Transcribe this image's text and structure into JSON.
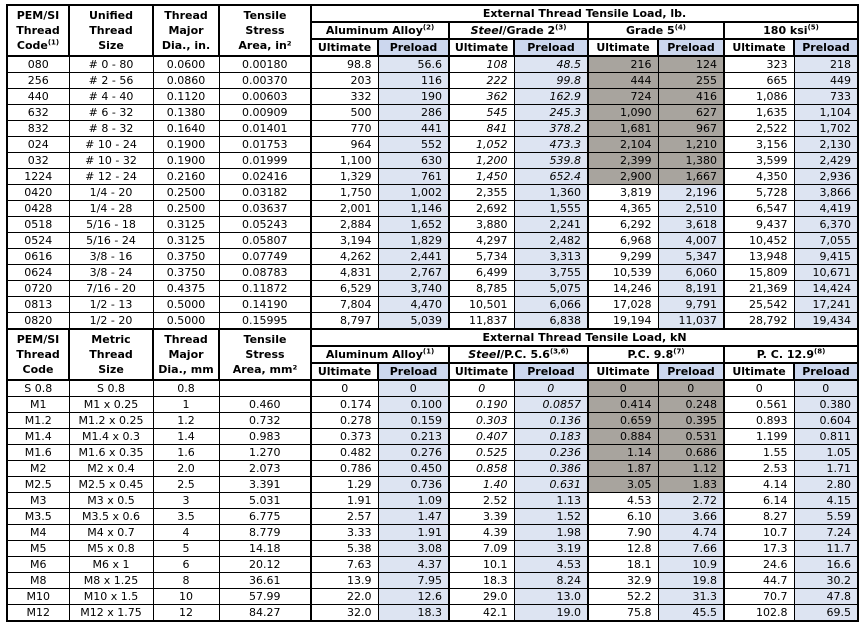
{
  "colors": {
    "preload_body_bg": "#dde4f2",
    "preload_header_bg": "#ccd7ee",
    "shaded_bg": "#a8a49e",
    "border": "#000000",
    "text": "#000000"
  },
  "subcols": [
    "Ultimate",
    "Preload"
  ],
  "sections": [
    {
      "left_headers": [
        {
          "lines": [
            "PEM/SI",
            "Thread",
            "Code"
          ],
          "sup": "(1)"
        },
        {
          "lines": [
            "Unified",
            "Thread",
            "Size"
          ]
        },
        {
          "lines": [
            "Thread",
            "Major",
            "Dia., in."
          ]
        },
        {
          "lines": [
            "Tensile",
            "Stress",
            "Area, in²"
          ]
        }
      ],
      "load_title": "External Thread Tensile Load, lb.",
      "groups": [
        {
          "italic": "",
          "plain": "Aluminum Alloy",
          "sup": "(2)"
        },
        {
          "italic": "Steel",
          "plain": "/Grade 2",
          "sup": "(3)"
        },
        {
          "italic": "",
          "plain": "Grade 5",
          "sup": "(4)"
        },
        {
          "italic": "",
          "plain": "180 ksi",
          "sup": "(5)"
        }
      ],
      "rows": [
        {
          "code": "080",
          "size": "# 0 - 80",
          "dia": "0.0600",
          "area": "0.00180",
          "loads": [
            "98.8",
            "56.6",
            "108",
            "48.5",
            "216",
            "124",
            "323",
            "218"
          ],
          "shaded": true,
          "italic": true
        },
        {
          "code": "256",
          "size": "# 2 - 56",
          "dia": "0.0860",
          "area": "0.00370",
          "loads": [
            "203",
            "116",
            "222",
            "99.8",
            "444",
            "255",
            "665",
            "449"
          ],
          "shaded": true,
          "italic": true
        },
        {
          "code": "440",
          "size": "# 4 - 40",
          "dia": "0.1120",
          "area": "0.00603",
          "loads": [
            "332",
            "190",
            "362",
            "162.9",
            "724",
            "416",
            "1,086",
            "733"
          ],
          "shaded": true,
          "italic": true
        },
        {
          "code": "632",
          "size": "# 6 - 32",
          "dia": "0.1380",
          "area": "0.00909",
          "loads": [
            "500",
            "286",
            "545",
            "245.3",
            "1,090",
            "627",
            "1,635",
            "1,104"
          ],
          "shaded": true,
          "italic": true
        },
        {
          "code": "832",
          "size": "# 8 - 32",
          "dia": "0.1640",
          "area": "0.01401",
          "loads": [
            "770",
            "441",
            "841",
            "378.2",
            "1,681",
            "967",
            "2,522",
            "1,702"
          ],
          "shaded": true,
          "italic": true
        },
        {
          "code": "024",
          "size": "# 10 - 24",
          "dia": "0.1900",
          "area": "0.01753",
          "loads": [
            "964",
            "552",
            "1,052",
            "473.3",
            "2,104",
            "1,210",
            "3,156",
            "2,130"
          ],
          "shaded": true,
          "italic": true
        },
        {
          "code": "032",
          "size": "# 10 - 32",
          "dia": "0.1900",
          "area": "0.01999",
          "loads": [
            "1,100",
            "630",
            "1,200",
            "539.8",
            "2,399",
            "1,380",
            "3,599",
            "2,429"
          ],
          "shaded": true,
          "italic": true
        },
        {
          "code": "1224",
          "size": "# 12 - 24",
          "dia": "0.2160",
          "area": "0.02416",
          "loads": [
            "1,329",
            "761",
            "1,450",
            "652.4",
            "2,900",
            "1,667",
            "4,350",
            "2,936"
          ],
          "shaded": true,
          "italic": true
        },
        {
          "code": "0420",
          "size": "1/4 - 20",
          "dia": "0.2500",
          "area": "0.03182",
          "loads": [
            "1,750",
            "1,002",
            "2,355",
            "1,360",
            "3,819",
            "2,196",
            "5,728",
            "3,866"
          ],
          "shaded": false,
          "italic": false
        },
        {
          "code": "0428",
          "size": "1/4 - 28",
          "dia": "0.2500",
          "area": "0.03637",
          "loads": [
            "2,001",
            "1,146",
            "2,692",
            "1,555",
            "4,365",
            "2,510",
            "6,547",
            "4,419"
          ],
          "shaded": false,
          "italic": false
        },
        {
          "code": "0518",
          "size": "5/16 - 18",
          "dia": "0.3125",
          "area": "0.05243",
          "loads": [
            "2,884",
            "1,652",
            "3,880",
            "2,241",
            "6,292",
            "3,618",
            "9,437",
            "6,370"
          ],
          "shaded": false,
          "italic": false
        },
        {
          "code": "0524",
          "size": "5/16 - 24",
          "dia": "0.3125",
          "area": "0.05807",
          "loads": [
            "3,194",
            "1,829",
            "4,297",
            "2,482",
            "6,968",
            "4,007",
            "10,452",
            "7,055"
          ],
          "shaded": false,
          "italic": false
        },
        {
          "code": "0616",
          "size": "3/8 - 16",
          "dia": "0.3750",
          "area": "0.07749",
          "loads": [
            "4,262",
            "2,441",
            "5,734",
            "3,313",
            "9,299",
            "5,347",
            "13,948",
            "9,415"
          ],
          "shaded": false,
          "italic": false
        },
        {
          "code": "0624",
          "size": "3/8 - 24",
          "dia": "0.3750",
          "area": "0.08783",
          "loads": [
            "4,831",
            "2,767",
            "6,499",
            "3,755",
            "10,539",
            "6,060",
            "15,809",
            "10,671"
          ],
          "shaded": false,
          "italic": false
        },
        {
          "code": "0720",
          "size": "7/16 - 20",
          "dia": "0.4375",
          "area": "0.11872",
          "loads": [
            "6,529",
            "3,740",
            "8,785",
            "5,075",
            "14,246",
            "8,191",
            "21,369",
            "14,424"
          ],
          "shaded": false,
          "italic": false
        },
        {
          "code": "0813",
          "size": "1/2 - 13",
          "dia": "0.5000",
          "area": "0.14190",
          "loads": [
            "7,804",
            "4,470",
            "10,501",
            "6,066",
            "17,028",
            "9,791",
            "25,542",
            "17,241"
          ],
          "shaded": false,
          "italic": false
        },
        {
          "code": "0820",
          "size": "1/2 - 20",
          "dia": "0.5000",
          "area": "0.15995",
          "loads": [
            "8,797",
            "5,039",
            "11,837",
            "6,838",
            "19,194",
            "11,037",
            "28,792",
            "19,434"
          ],
          "shaded": false,
          "italic": false
        }
      ]
    },
    {
      "left_headers": [
        {
          "lines": [
            "PEM/SI",
            "Thread",
            "Code"
          ]
        },
        {
          "lines": [
            "Metric",
            "Thread",
            "Size"
          ]
        },
        {
          "lines": [
            "Thread",
            "Major",
            "Dia., mm"
          ]
        },
        {
          "lines": [
            "Tensile",
            "Stress",
            "Area, mm²"
          ]
        }
      ],
      "load_title": "External Thread Tensile Load, kN",
      "groups": [
        {
          "italic": "",
          "plain": "Aluminum Alloy",
          "sup": "(1)"
        },
        {
          "italic": "Steel",
          "plain": "/P.C. 5.6",
          "sup": "(3,6)"
        },
        {
          "italic": "",
          "plain": "P.C. 9.8",
          "sup": "(7)"
        },
        {
          "italic": "",
          "plain": "P. C. 12.9",
          "sup": "(8)"
        }
      ],
      "rows": [
        {
          "code": "S 0.8",
          "size": "S 0.8",
          "dia": "0.8",
          "area": "",
          "loads": [
            "0",
            "0",
            "0",
            "0",
            "0",
            "0",
            "0",
            "0"
          ],
          "shaded": true,
          "italic": true
        },
        {
          "code": "M1",
          "size": "M1 x 0.25",
          "dia": "1",
          "area": "0.460",
          "loads": [
            "0.174",
            "0.100",
            "0.190",
            "0.0857",
            "0.414",
            "0.248",
            "0.561",
            "0.380"
          ],
          "shaded": true,
          "italic": true
        },
        {
          "code": "M1.2",
          "size": "M1.2 x 0.25",
          "dia": "1.2",
          "area": "0.732",
          "loads": [
            "0.278",
            "0.159",
            "0.303",
            "0.136",
            "0.659",
            "0.395",
            "0.893",
            "0.604"
          ],
          "shaded": true,
          "italic": true
        },
        {
          "code": "M1.4",
          "size": "M1.4 x 0.3",
          "dia": "1.4",
          "area": "0.983",
          "loads": [
            "0.373",
            "0.213",
            "0.407",
            "0.183",
            "0.884",
            "0.531",
            "1.199",
            "0.811"
          ],
          "shaded": true,
          "italic": true
        },
        {
          "code": "M1.6",
          "size": "M1.6 x 0.35",
          "dia": "1.6",
          "area": "1.270",
          "loads": [
            "0.482",
            "0.276",
            "0.525",
            "0.236",
            "1.14",
            "0.686",
            "1.55",
            "1.05"
          ],
          "shaded": true,
          "italic": true
        },
        {
          "code": "M2",
          "size": "M2 x 0.4",
          "dia": "2.0",
          "area": "2.073",
          "loads": [
            "0.786",
            "0.450",
            "0.858",
            "0.386",
            "1.87",
            "1.12",
            "2.53",
            "1.71"
          ],
          "shaded": true,
          "italic": true
        },
        {
          "code": "M2.5",
          "size": "M2.5 x 0.45",
          "dia": "2.5",
          "area": "3.391",
          "loads": [
            "1.29",
            "0.736",
            "1.40",
            "0.631",
            "3.05",
            "1.83",
            "4.14",
            "2.80"
          ],
          "shaded": true,
          "italic": true
        },
        {
          "code": "M3",
          "size": "M3 x 0.5",
          "dia": "3",
          "area": "5.031",
          "loads": [
            "1.91",
            "1.09",
            "2.52",
            "1.13",
            "4.53",
            "2.72",
            "6.14",
            "4.15"
          ],
          "shaded": false,
          "italic": false
        },
        {
          "code": "M3.5",
          "size": "M3.5 x 0.6",
          "dia": "3.5",
          "area": "6.775",
          "loads": [
            "2.57",
            "1.47",
            "3.39",
            "1.52",
            "6.10",
            "3.66",
            "8.27",
            "5.59"
          ],
          "shaded": false,
          "italic": false
        },
        {
          "code": "M4",
          "size": "M4 x 0.7",
          "dia": "4",
          "area": "8.779",
          "loads": [
            "3.33",
            "1.91",
            "4.39",
            "1.98",
            "7.90",
            "4.74",
            "10.7",
            "7.24"
          ],
          "shaded": false,
          "italic": false
        },
        {
          "code": "M5",
          "size": "M5 x 0.8",
          "dia": "5",
          "area": "14.18",
          "loads": [
            "5.38",
            "3.08",
            "7.09",
            "3.19",
            "12.8",
            "7.66",
            "17.3",
            "11.7"
          ],
          "shaded": false,
          "italic": false
        },
        {
          "code": "M6",
          "size": "M6 x 1",
          "dia": "6",
          "area": "20.12",
          "loads": [
            "7.63",
            "4.37",
            "10.1",
            "4.53",
            "18.1",
            "10.9",
            "24.6",
            "16.6"
          ],
          "shaded": false,
          "italic": false
        },
        {
          "code": "M8",
          "size": "M8 x 1.25",
          "dia": "8",
          "area": "36.61",
          "loads": [
            "13.9",
            "7.95",
            "18.3",
            "8.24",
            "32.9",
            "19.8",
            "44.7",
            "30.2"
          ],
          "shaded": false,
          "italic": false
        },
        {
          "code": "M10",
          "size": "M10 x 1.5",
          "dia": "10",
          "area": "57.99",
          "loads": [
            "22.0",
            "12.6",
            "29.0",
            "13.0",
            "52.2",
            "31.3",
            "70.7",
            "47.8"
          ],
          "shaded": false,
          "italic": false
        },
        {
          "code": "M12",
          "size": "M12 x 1.75",
          "dia": "12",
          "area": "84.27",
          "loads": [
            "32.0",
            "18.3",
            "42.1",
            "19.0",
            "75.8",
            "45.5",
            "102.8",
            "69.5"
          ],
          "shaded": false,
          "italic": false
        }
      ]
    }
  ]
}
